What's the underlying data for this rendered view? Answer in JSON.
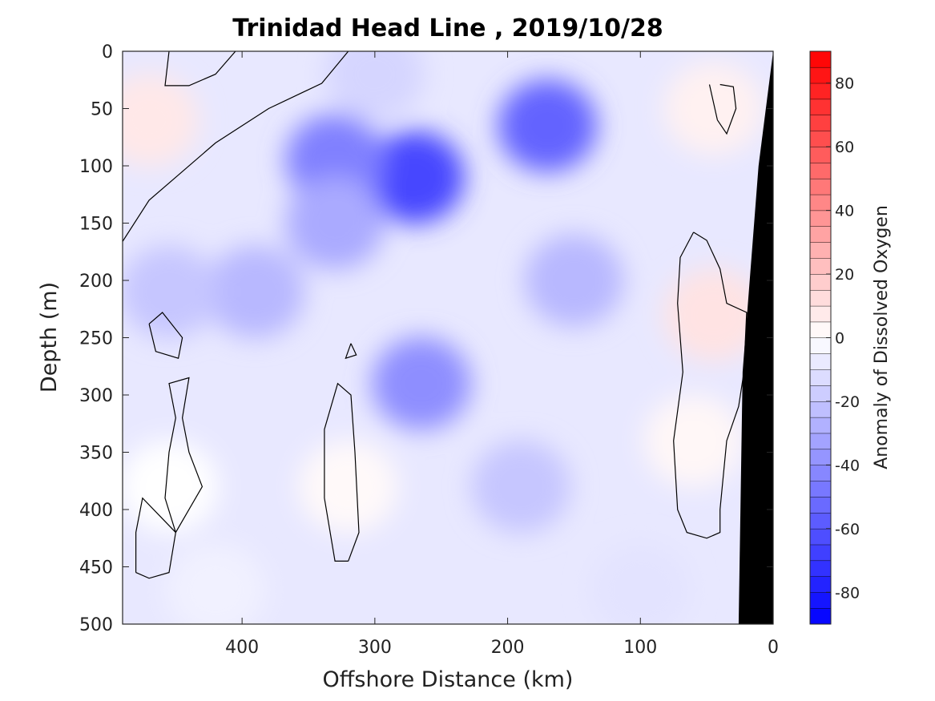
{
  "chart_data": {
    "type": "heatmap",
    "subtype": "filled-contour section",
    "title": "Trinidad Head Line , 2019/10/28",
    "xlabel": "Offshore Distance (km)",
    "ylabel": "Depth (m)",
    "colorbar_label": "Anomaly of Dissolved Oxygen",
    "x_axis": {
      "lim": [
        490,
        0
      ],
      "reversed": true,
      "ticks": [
        400,
        300,
        200,
        100,
        0
      ],
      "tick_labels": [
        "400",
        "300",
        "200",
        "100",
        "0"
      ]
    },
    "y_axis": {
      "lim": [
        0,
        500
      ],
      "reversed": true,
      "ticks": [
        0,
        50,
        100,
        150,
        200,
        250,
        300,
        350,
        400,
        450,
        500
      ],
      "tick_labels": [
        "0",
        "50",
        "100",
        "150",
        "200",
        "250",
        "300",
        "350",
        "400",
        "450",
        "500"
      ]
    },
    "colorbar": {
      "lim": [
        -90,
        90
      ],
      "step": 5,
      "ticks": [
        -80,
        -60,
        -40,
        -20,
        0,
        20,
        40,
        60,
        80
      ],
      "tick_labels": [
        "-80",
        "-60",
        "-40",
        "-20",
        "0",
        "20",
        "40",
        "60",
        "80"
      ],
      "colormap": "blue-white-red",
      "colors": {
        "min": "#0000ff",
        "zero": "#ffffff",
        "max": "#ff0000"
      }
    },
    "grid": false,
    "bathymetry_mask": {
      "color": "#000000",
      "bottom_profile": [
        {
          "distance": 0,
          "depth": 0
        },
        {
          "distance": 11,
          "depth": 100
        },
        {
          "distance": 23,
          "depth": 280
        },
        {
          "distance": 26,
          "depth": 500
        }
      ]
    },
    "anomaly_features": [
      {
        "distance": 270,
        "depth": 110,
        "value": -65
      },
      {
        "distance": 170,
        "depth": 65,
        "value": -55
      },
      {
        "distance": 330,
        "depth": 95,
        "value": -45
      },
      {
        "distance": 265,
        "depth": 290,
        "value": -40
      },
      {
        "distance": 390,
        "depth": 210,
        "value": -25
      },
      {
        "distance": 150,
        "depth": 200,
        "value": -25
      },
      {
        "distance": 455,
        "depth": 210,
        "value": -20
      },
      {
        "distance": 190,
        "depth": 380,
        "value": -20
      },
      {
        "distance": 330,
        "depth": 150,
        "value": -30
      },
      {
        "distance": 470,
        "depth": 60,
        "value": 8
      },
      {
        "distance": 45,
        "depth": 230,
        "value": 10
      },
      {
        "distance": 45,
        "depth": 50,
        "value": 5
      },
      {
        "distance": 455,
        "depth": 380,
        "value": 0
      },
      {
        "distance": 320,
        "depth": 380,
        "value": 2
      },
      {
        "distance": 60,
        "depth": 340,
        "value": 3
      },
      {
        "distance": 300,
        "depth": 20,
        "value": -15
      },
      {
        "distance": 100,
        "depth": 470,
        "value": -10
      },
      {
        "distance": 420,
        "depth": 470,
        "value": -5
      }
    ],
    "zero_contours": [
      {
        "name": "north-west",
        "points": [
          [
            490,
            166
          ],
          [
            470,
            130
          ],
          [
            450,
            110
          ],
          [
            420,
            80
          ],
          [
            380,
            50
          ],
          [
            340,
            28
          ],
          [
            320,
            0
          ]
        ]
      },
      {
        "name": "upper-left",
        "points": [
          [
            455,
            0
          ],
          [
            458,
            30
          ],
          [
            440,
            30
          ],
          [
            420,
            20
          ],
          [
            405,
            0
          ]
        ]
      },
      {
        "name": "nearshore-small",
        "points": [
          [
            40,
            29
          ],
          [
            30,
            31
          ],
          [
            28,
            50
          ],
          [
            35,
            72
          ],
          [
            42,
            60
          ],
          [
            48,
            29
          ]
        ]
      },
      {
        "name": "nearshore-large",
        "points": [
          [
            60,
            158
          ],
          [
            50,
            165
          ],
          [
            40,
            190
          ],
          [
            35,
            220
          ],
          [
            20,
            228
          ],
          [
            22,
            280
          ],
          [
            26,
            310
          ],
          [
            35,
            340
          ],
          [
            40,
            400
          ],
          [
            40,
            420
          ],
          [
            50,
            425
          ],
          [
            65,
            420
          ],
          [
            72,
            400
          ],
          [
            75,
            340
          ],
          [
            68,
            280
          ],
          [
            72,
            220
          ],
          [
            70,
            180
          ],
          [
            60,
            158
          ]
        ]
      },
      {
        "name": "far-west",
        "points": [
          [
            480,
            455
          ],
          [
            470,
            460
          ],
          [
            455,
            455
          ],
          [
            450,
            420
          ],
          [
            458,
            390
          ],
          [
            455,
            350
          ],
          [
            450,
            320
          ],
          [
            455,
            290
          ],
          [
            440,
            285
          ],
          [
            445,
            320
          ],
          [
            440,
            350
          ],
          [
            430,
            380
          ],
          [
            450,
            420
          ],
          [
            475,
            390
          ],
          [
            480,
            420
          ],
          [
            480,
            455
          ]
        ]
      },
      {
        "name": "far-west-small",
        "points": [
          [
            470,
            238
          ],
          [
            460,
            228
          ],
          [
            445,
            250
          ],
          [
            448,
            268
          ],
          [
            465,
            262
          ],
          [
            470,
            238
          ]
        ]
      },
      {
        "name": "middle",
        "points": [
          [
            320,
            445
          ],
          [
            330,
            445
          ],
          [
            338,
            390
          ],
          [
            338,
            330
          ],
          [
            328,
            290
          ],
          [
            318,
            300
          ],
          [
            315,
            350
          ],
          [
            312,
            420
          ],
          [
            320,
            445
          ]
        ]
      },
      {
        "name": "middle-small",
        "points": [
          [
            318,
            255
          ],
          [
            314,
            265
          ],
          [
            322,
            268
          ],
          [
            318,
            255
          ]
        ]
      }
    ]
  }
}
